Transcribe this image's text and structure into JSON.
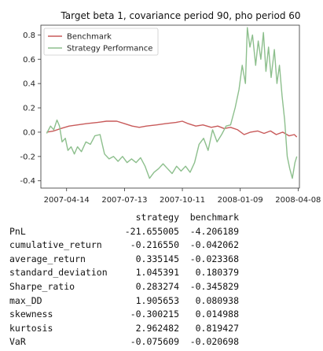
{
  "chart_data": {
    "type": "line",
    "title": "Target beta 1, covariance period 90, pho period 60",
    "xlabel": "",
    "ylabel": "",
    "x_ticks": [
      "2007-04-14",
      "2007-07-13",
      "2007-10-11",
      "2008-01-09",
      "2008-04-08"
    ],
    "x_range": [
      "2007-03-05",
      "2008-04-10"
    ],
    "ylim": [
      -0.46,
      0.88
    ],
    "y_ticks": [
      -0.4,
      -0.2,
      0.0,
      0.2,
      0.4,
      0.6,
      0.8
    ],
    "y_tick_labels": [
      "-0.4",
      "-0.2",
      "0.0",
      "0.2",
      "0.4",
      "0.6",
      "0.8"
    ],
    "grid": false,
    "legend": "top-left",
    "series": [
      {
        "name": "Benchmark",
        "color": "#c85a5a",
        "points": [
          [
            "2007-03-14",
            0.0
          ],
          [
            "2007-03-25",
            0.01
          ],
          [
            "2007-04-05",
            0.03
          ],
          [
            "2007-04-18",
            0.05
          ],
          [
            "2007-05-01",
            0.06
          ],
          [
            "2007-05-15",
            0.07
          ],
          [
            "2007-06-01",
            0.08
          ],
          [
            "2007-06-15",
            0.09
          ],
          [
            "2007-07-01",
            0.09
          ],
          [
            "2007-07-13",
            0.07
          ],
          [
            "2007-07-25",
            0.05
          ],
          [
            "2007-08-05",
            0.04
          ],
          [
            "2007-08-16",
            0.05
          ],
          [
            "2007-09-01",
            0.06
          ],
          [
            "2007-09-15",
            0.07
          ],
          [
            "2007-10-01",
            0.08
          ],
          [
            "2007-10-11",
            0.09
          ],
          [
            "2007-10-20",
            0.07
          ],
          [
            "2007-11-01",
            0.05
          ],
          [
            "2007-11-12",
            0.06
          ],
          [
            "2007-11-25",
            0.04
          ],
          [
            "2007-12-05",
            0.05
          ],
          [
            "2007-12-15",
            0.03
          ],
          [
            "2007-12-25",
            0.04
          ],
          [
            "2008-01-05",
            0.02
          ],
          [
            "2008-01-15",
            -0.02
          ],
          [
            "2008-01-25",
            0.0
          ],
          [
            "2008-02-05",
            0.01
          ],
          [
            "2008-02-15",
            -0.01
          ],
          [
            "2008-02-25",
            0.01
          ],
          [
            "2008-03-05",
            -0.02
          ],
          [
            "2008-03-15",
            0.0
          ],
          [
            "2008-03-25",
            -0.03
          ],
          [
            "2008-04-02",
            -0.02
          ],
          [
            "2008-04-06",
            -0.04
          ]
        ]
      },
      {
        "name": "Strategy Performance",
        "color": "#8dbf8d",
        "points": [
          [
            "2007-03-14",
            -0.01
          ],
          [
            "2007-03-20",
            0.05
          ],
          [
            "2007-03-25",
            0.02
          ],
          [
            "2007-03-30",
            0.1
          ],
          [
            "2007-04-03",
            0.05
          ],
          [
            "2007-04-07",
            -0.08
          ],
          [
            "2007-04-12",
            -0.05
          ],
          [
            "2007-04-16",
            -0.15
          ],
          [
            "2007-04-21",
            -0.12
          ],
          [
            "2007-04-26",
            -0.18
          ],
          [
            "2007-05-01",
            -0.12
          ],
          [
            "2007-05-07",
            -0.16
          ],
          [
            "2007-05-14",
            -0.08
          ],
          [
            "2007-05-21",
            -0.1
          ],
          [
            "2007-05-28",
            -0.03
          ],
          [
            "2007-06-05",
            -0.02
          ],
          [
            "2007-06-12",
            -0.18
          ],
          [
            "2007-06-19",
            -0.22
          ],
          [
            "2007-06-26",
            -0.2
          ],
          [
            "2007-07-03",
            -0.24
          ],
          [
            "2007-07-10",
            -0.2
          ],
          [
            "2007-07-17",
            -0.25
          ],
          [
            "2007-07-24",
            -0.22
          ],
          [
            "2007-07-31",
            -0.25
          ],
          [
            "2007-08-07",
            -0.21
          ],
          [
            "2007-08-14",
            -0.28
          ],
          [
            "2007-08-21",
            -0.38
          ],
          [
            "2007-08-28",
            -0.33
          ],
          [
            "2007-09-04",
            -0.3
          ],
          [
            "2007-09-11",
            -0.26
          ],
          [
            "2007-09-18",
            -0.3
          ],
          [
            "2007-09-25",
            -0.34
          ],
          [
            "2007-10-02",
            -0.28
          ],
          [
            "2007-10-09",
            -0.32
          ],
          [
            "2007-10-16",
            -0.28
          ],
          [
            "2007-10-23",
            -0.33
          ],
          [
            "2007-10-30",
            -0.25
          ],
          [
            "2007-11-06",
            -0.1
          ],
          [
            "2007-11-13",
            -0.05
          ],
          [
            "2007-11-20",
            -0.15
          ],
          [
            "2007-11-27",
            0.02
          ],
          [
            "2007-12-04",
            -0.08
          ],
          [
            "2007-12-11",
            -0.02
          ],
          [
            "2007-12-18",
            0.05
          ],
          [
            "2007-12-25",
            0.06
          ],
          [
            "2008-01-01",
            0.2
          ],
          [
            "2008-01-07",
            0.35
          ],
          [
            "2008-01-12",
            0.55
          ],
          [
            "2008-01-17",
            0.4
          ],
          [
            "2008-01-20",
            0.86
          ],
          [
            "2008-01-24",
            0.7
          ],
          [
            "2008-01-28",
            0.8
          ],
          [
            "2008-02-02",
            0.55
          ],
          [
            "2008-02-06",
            0.75
          ],
          [
            "2008-02-10",
            0.6
          ],
          [
            "2008-02-14",
            0.82
          ],
          [
            "2008-02-18",
            0.5
          ],
          [
            "2008-02-22",
            0.7
          ],
          [
            "2008-02-26",
            0.45
          ],
          [
            "2008-03-02",
            0.68
          ],
          [
            "2008-03-06",
            0.4
          ],
          [
            "2008-03-10",
            0.55
          ],
          [
            "2008-03-14",
            0.3
          ],
          [
            "2008-03-18",
            0.1
          ],
          [
            "2008-03-22",
            -0.2
          ],
          [
            "2008-03-26",
            -0.3
          ],
          [
            "2008-03-30",
            -0.38
          ],
          [
            "2008-04-03",
            -0.25
          ],
          [
            "2008-04-06",
            -0.2
          ]
        ]
      }
    ]
  },
  "stats_table": {
    "headers": [
      "strategy",
      "benchmark"
    ],
    "rows": [
      {
        "label": "PnL",
        "strategy": "-21.655005",
        "benchmark": "-4.206189"
      },
      {
        "label": "cumulative_return",
        "strategy": "-0.216550",
        "benchmark": "-0.042062"
      },
      {
        "label": "average_return",
        "strategy": "0.335145",
        "benchmark": "-0.023368"
      },
      {
        "label": "standard_deviation",
        "strategy": "1.045391",
        "benchmark": "0.180379"
      },
      {
        "label": "Sharpe_ratio",
        "strategy": "0.283274",
        "benchmark": "-0.345829"
      },
      {
        "label": "max_DD",
        "strategy": "1.905653",
        "benchmark": "0.080938"
      },
      {
        "label": "skewness",
        "strategy": "-0.300215",
        "benchmark": "0.014988"
      },
      {
        "label": "kurtosis",
        "strategy": "2.962482",
        "benchmark": "0.819427"
      },
      {
        "label": "VaR",
        "strategy": "-0.075609",
        "benchmark": "-0.020698"
      }
    ]
  }
}
